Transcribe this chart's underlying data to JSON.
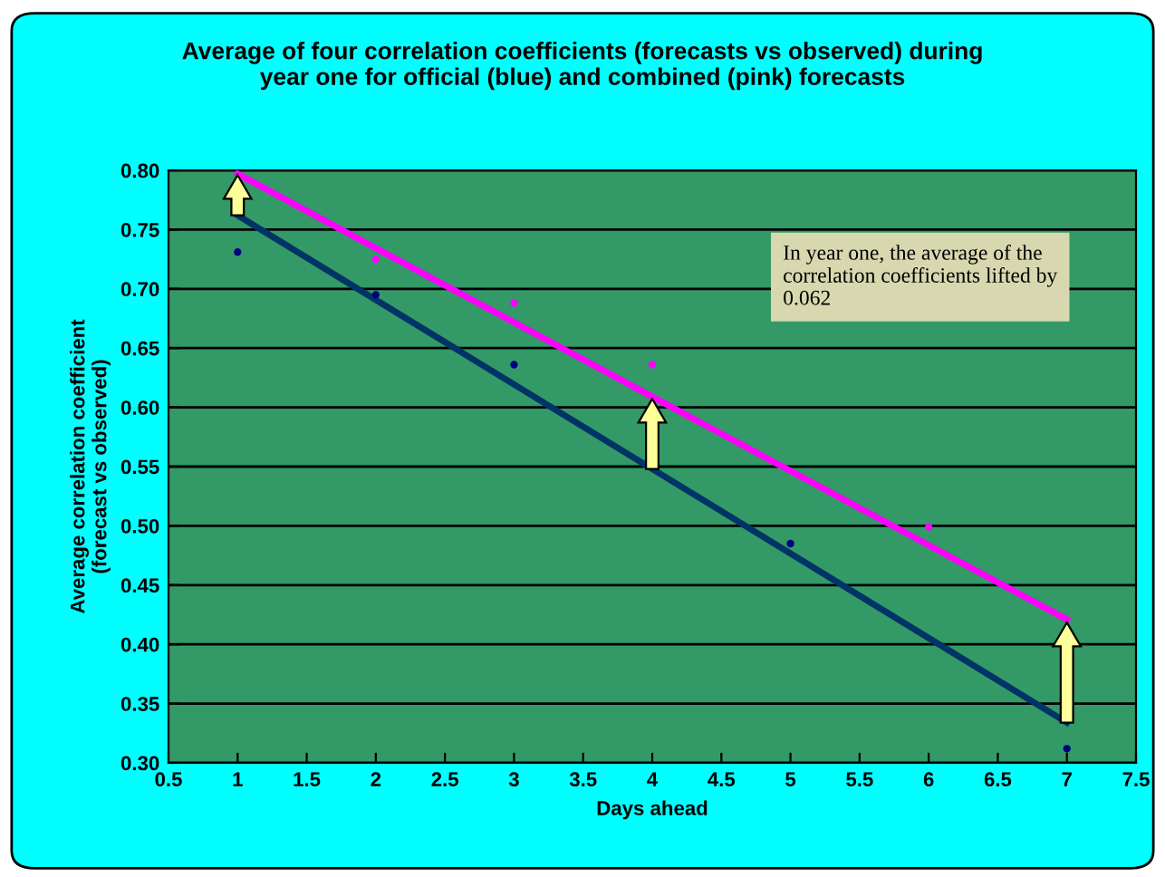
{
  "chart_data": {
    "type": "scatter",
    "title": "Average of four correlation coefficients (forecasts vs observed) during\nyear one for official (blue) and combined (pink) forecasts",
    "xlabel": "Days ahead",
    "ylabel": "Average correlation coefficient\n(forecast vs observed)",
    "x": [
      1,
      2,
      3,
      4,
      5,
      6,
      7
    ],
    "series": [
      {
        "marker": "circle",
        "color": "#000080",
        "values": [
          0.731,
          0.695,
          0.636,
          null,
          0.485,
          null,
          0.312
        ]
      },
      {
        "marker": "circle",
        "color": "#ff00ff",
        "values": [
          null,
          0.725,
          0.688,
          0.636,
          null,
          0.499,
          null
        ]
      },
      {
        "type": "line",
        "color": "#003366",
        "x": [
          1,
          4,
          7
        ],
        "values": [
          0.762,
          0.548,
          0.334
        ]
      },
      {
        "type": "line",
        "color": "#ff00ff",
        "x": [
          1,
          4,
          7
        ],
        "values": [
          0.797,
          0.609,
          0.421
        ]
      }
    ],
    "xlim": [
      0.5,
      7.5
    ],
    "xticks": [
      0.5,
      1,
      1.5,
      2,
      2.5,
      3,
      3.5,
      4,
      4.5,
      5,
      5.5,
      6,
      6.5,
      7,
      7.5
    ],
    "ylim": [
      0.3,
      0.8
    ],
    "yticks": [
      {
        "value": 0.3,
        "label": "0.30"
      },
      {
        "value": 0.35,
        "label": "0.35"
      },
      {
        "value": 0.4,
        "label": "0.40"
      },
      {
        "value": 0.45,
        "label": "0.45"
      },
      {
        "value": 0.5,
        "label": "0.50"
      },
      {
        "value": 0.55,
        "label": "0.55"
      },
      {
        "value": 0.6,
        "label": "0.60"
      },
      {
        "value": 0.65,
        "label": "0.65"
      },
      {
        "value": 0.7,
        "label": "0.70"
      },
      {
        "value": 0.75,
        "label": "0.75"
      },
      {
        "value": 0.8,
        "label": "0.80"
      }
    ],
    "grid": "y",
    "annotations": [
      "In year one, the average of the\ncorrelation coefficients lifted by\n0.062"
    ]
  }
}
